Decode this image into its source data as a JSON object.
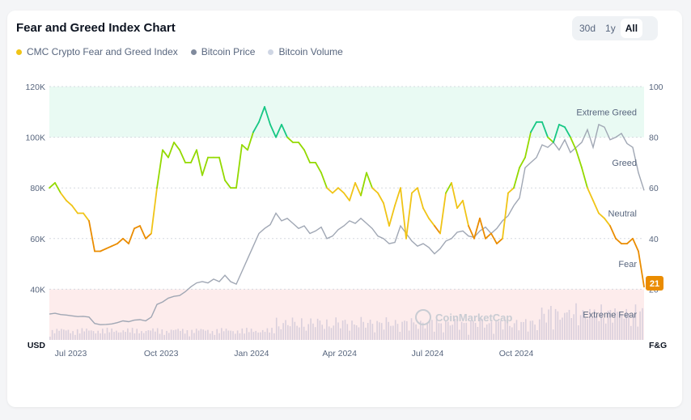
{
  "header": {
    "title": "Fear and Greed Index Chart",
    "ranges": [
      "30d",
      "1y",
      "All"
    ],
    "active_range": "All"
  },
  "legend": [
    {
      "label": "CMC Crypto Fear and Greed Index",
      "color": "#f0c417"
    },
    {
      "label": "Bitcoin Price",
      "color": "#808a9d"
    },
    {
      "label": "Bitcoin Volume",
      "color": "#cfd6e4"
    }
  ],
  "watermark": "CoinMarketCap",
  "current_badge": "21",
  "chart_data": {
    "type": "line",
    "x_tick_labels": [
      "Jul 2023",
      "Oct 2023",
      "Jan 2024",
      "Apr 2024",
      "Jul 2024",
      "Oct 2024"
    ],
    "left_axis": {
      "unit": "USD",
      "tick_labels": [
        "120K",
        "100K",
        "80K",
        "60K",
        "40K"
      ],
      "ylim": [
        20000,
        120000
      ]
    },
    "right_axis": {
      "unit": "F&G",
      "tick_labels": [
        "100",
        "80",
        "60",
        "40",
        "20"
      ],
      "ylim": [
        0,
        100
      ]
    },
    "zones": [
      "Extreme Greed",
      "Greed",
      "Neutral",
      "Fear",
      "Extreme Fear"
    ],
    "colors": {
      "extreme_greed": "#16c784",
      "greed": "#93d900",
      "neutral": "#f0c417",
      "fear": "#ea8c00",
      "extreme_fear": "#ea3943",
      "price": "#a0a7b4",
      "volume": "#d9cfdc"
    },
    "series": [
      {
        "name": "CMC Crypto Fear and Greed Index",
        "values": [
          60,
          62,
          58,
          55,
          53,
          50,
          50,
          47,
          35,
          35,
          36,
          37,
          38,
          40,
          38,
          44,
          45,
          40,
          42,
          60,
          75,
          72,
          78,
          75,
          70,
          70,
          75,
          65,
          72,
          72,
          72,
          63,
          60,
          60,
          77,
          75,
          82,
          86,
          92,
          85,
          80,
          85,
          80,
          78,
          78,
          75,
          70,
          70,
          66,
          60,
          58,
          60,
          58,
          55,
          62,
          57,
          66,
          60,
          58,
          54,
          45,
          53,
          60,
          40,
          58,
          60,
          52,
          48,
          45,
          42,
          58,
          62,
          52,
          55,
          45,
          40,
          48,
          40,
          42,
          38,
          40,
          58,
          60,
          68,
          72,
          82,
          86,
          86,
          80,
          78,
          85,
          84,
          80,
          75,
          68,
          60,
          55,
          50,
          48,
          45,
          40,
          38,
          38,
          40,
          35,
          21
        ]
      },
      {
        "name": "Bitcoin Price",
        "values": [
          30200,
          30500,
          30000,
          29800,
          29500,
          29200,
          29300,
          29000,
          26500,
          26000,
          26100,
          26300,
          26800,
          27500,
          27200,
          27800,
          28000,
          27500,
          29000,
          34000,
          35000,
          36500,
          37200,
          37500,
          39000,
          41000,
          42500,
          43000,
          42500,
          44000,
          43000,
          45500,
          43000,
          42000,
          47000,
          52000,
          57000,
          62000,
          64000,
          65500,
          70000,
          67000,
          68000,
          66000,
          64000,
          65000,
          62000,
          63000,
          64500,
          60000,
          61000,
          63500,
          65000,
          67000,
          66000,
          68000,
          66000,
          64000,
          61000,
          60000,
          58000,
          58500,
          65000,
          62000,
          59000,
          57000,
          58000,
          56500,
          54000,
          56000,
          59000,
          60000,
          62500,
          63000,
          61000,
          60500,
          63000,
          64500,
          62000,
          64000,
          67000,
          69000,
          73000,
          76000,
          88000,
          90000,
          92000,
          97000,
          96000,
          98000,
          95000,
          99000,
          94000,
          96000,
          98000,
          103000,
          96000,
          105000,
          104000,
          99000,
          100000,
          101500,
          97500,
          96000,
          86000,
          79000
        ]
      }
    ]
  }
}
